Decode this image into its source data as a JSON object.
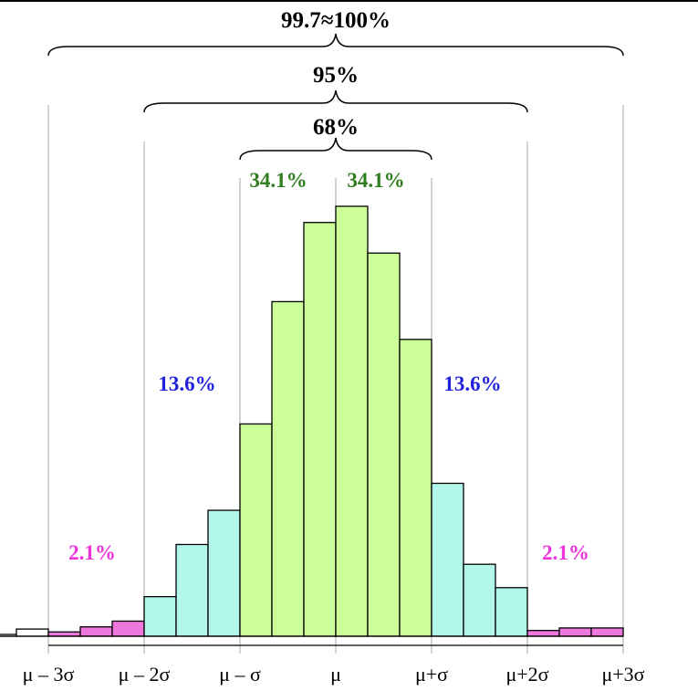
{
  "chart_data": {
    "type": "bar",
    "x_ticks": [
      "μ – 3σ",
      "μ – 2σ",
      "μ – σ",
      "μ",
      "μ+σ",
      "μ+2σ",
      "μ+3σ"
    ],
    "bins_per_sigma": 3,
    "bins": [
      {
        "value": 0.5,
        "region": "outer"
      },
      {
        "value": 2.0,
        "region": "outer"
      },
      {
        "value": 1.2,
        "region": "tail"
      },
      {
        "value": 2.6,
        "region": "tail"
      },
      {
        "value": 4.2,
        "region": "tail"
      },
      {
        "value": 11.0,
        "region": "two_sigma"
      },
      {
        "value": 25.5,
        "region": "two_sigma"
      },
      {
        "value": 35.0,
        "region": "two_sigma"
      },
      {
        "value": 59.0,
        "region": "one_sigma"
      },
      {
        "value": 93.0,
        "region": "one_sigma"
      },
      {
        "value": 115.0,
        "region": "one_sigma"
      },
      {
        "value": 119.5,
        "region": "one_sigma"
      },
      {
        "value": 106.5,
        "region": "one_sigma"
      },
      {
        "value": 82.5,
        "region": "one_sigma"
      },
      {
        "value": 42.5,
        "region": "two_sigma"
      },
      {
        "value": 20.0,
        "region": "two_sigma"
      },
      {
        "value": 13.5,
        "region": "two_sigma"
      },
      {
        "value": 1.6,
        "region": "tail"
      },
      {
        "value": 2.3,
        "region": "tail"
      },
      {
        "value": 2.3,
        "region": "tail"
      }
    ],
    "ylim": [
      0,
      125
    ],
    "region_colors": {
      "outer": "#ffffff",
      "tail": "#ee77dd",
      "two_sigma": "#b3f7ea",
      "one_sigma": "#ccff99"
    },
    "label_colors": {
      "one_sigma": "#2e7d1e",
      "two_sigma": "#2222dd",
      "tail": "#ee33dd"
    },
    "brackets": [
      {
        "label": "99.7≈100%",
        "from": "μ – 3σ",
        "to": "μ+3σ"
      },
      {
        "label": "95%",
        "from": "μ – 2σ",
        "to": "μ+2σ"
      },
      {
        "label": "68%",
        "from": "μ – σ",
        "to": "μ+σ"
      }
    ],
    "region_labels": [
      {
        "text": "34.1%",
        "region": "one_sigma",
        "side": "left"
      },
      {
        "text": "34.1%",
        "region": "one_sigma",
        "side": "right"
      },
      {
        "text": "13.6%",
        "region": "two_sigma",
        "side": "left"
      },
      {
        "text": "13.6%",
        "region": "two_sigma",
        "side": "right"
      },
      {
        "text": "2.1%",
        "region": "tail",
        "side": "left"
      },
      {
        "text": "2.1%",
        "region": "tail",
        "side": "right"
      }
    ]
  }
}
